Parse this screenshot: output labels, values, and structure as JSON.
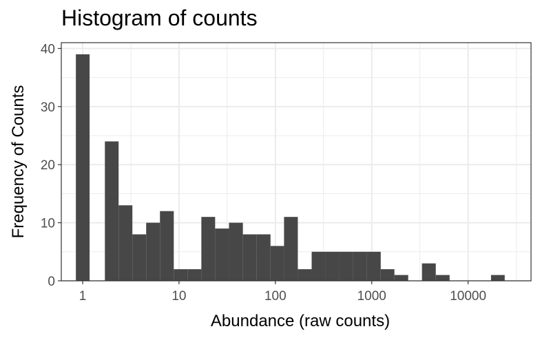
{
  "chart_data": {
    "type": "bar",
    "title": "Histogram of counts",
    "xlabel": "Abundance (raw counts)",
    "ylabel": "Frequency of Counts",
    "x_scale": "log10",
    "xlim": [
      0.6,
      45000
    ],
    "ylim": [
      0,
      41
    ],
    "x_ticks": [
      1,
      10,
      100,
      1000,
      10000
    ],
    "x_tick_labels": [
      "1",
      "10",
      "100",
      "1000",
      "10000"
    ],
    "y_ticks": [
      0,
      10,
      20,
      30,
      40
    ],
    "y_tick_labels": [
      "0",
      "10",
      "20",
      "30",
      "40"
    ],
    "grid": true,
    "theme": "bw",
    "bar_color": "#474747",
    "bins": [
      {
        "x0": 0.85,
        "x1": 1.18,
        "count": 39
      },
      {
        "x0": 1.7,
        "x1": 2.36,
        "count": 24
      },
      {
        "x0": 2.36,
        "x1": 3.28,
        "count": 13
      },
      {
        "x0": 3.28,
        "x1": 4.56,
        "count": 8
      },
      {
        "x0": 4.56,
        "x1": 6.34,
        "count": 10
      },
      {
        "x0": 6.34,
        "x1": 8.82,
        "count": 12
      },
      {
        "x0": 8.82,
        "x1": 12.26,
        "count": 2
      },
      {
        "x0": 12.26,
        "x1": 17.05,
        "count": 2
      },
      {
        "x0": 17.05,
        "x1": 23.7,
        "count": 11
      },
      {
        "x0": 23.7,
        "x1": 33,
        "count": 9
      },
      {
        "x0": 33,
        "x1": 46,
        "count": 10
      },
      {
        "x0": 46,
        "x1": 64,
        "count": 8
      },
      {
        "x0": 64,
        "x1": 89,
        "count": 8
      },
      {
        "x0": 89,
        "x1": 123,
        "count": 6
      },
      {
        "x0": 123,
        "x1": 171,
        "count": 11
      },
      {
        "x0": 171,
        "x1": 238,
        "count": 2
      },
      {
        "x0": 238,
        "x1": 331,
        "count": 5
      },
      {
        "x0": 331,
        "x1": 460,
        "count": 5
      },
      {
        "x0": 460,
        "x1": 640,
        "count": 5
      },
      {
        "x0": 640,
        "x1": 890,
        "count": 5
      },
      {
        "x0": 890,
        "x1": 1240,
        "count": 5
      },
      {
        "x0": 1240,
        "x1": 1720,
        "count": 2
      },
      {
        "x0": 1720,
        "x1": 2390,
        "count": 1
      },
      {
        "x0": 3320,
        "x1": 4620,
        "count": 3
      },
      {
        "x0": 4620,
        "x1": 6430,
        "count": 1
      },
      {
        "x0": 17300,
        "x1": 24000,
        "count": 1
      }
    ]
  }
}
